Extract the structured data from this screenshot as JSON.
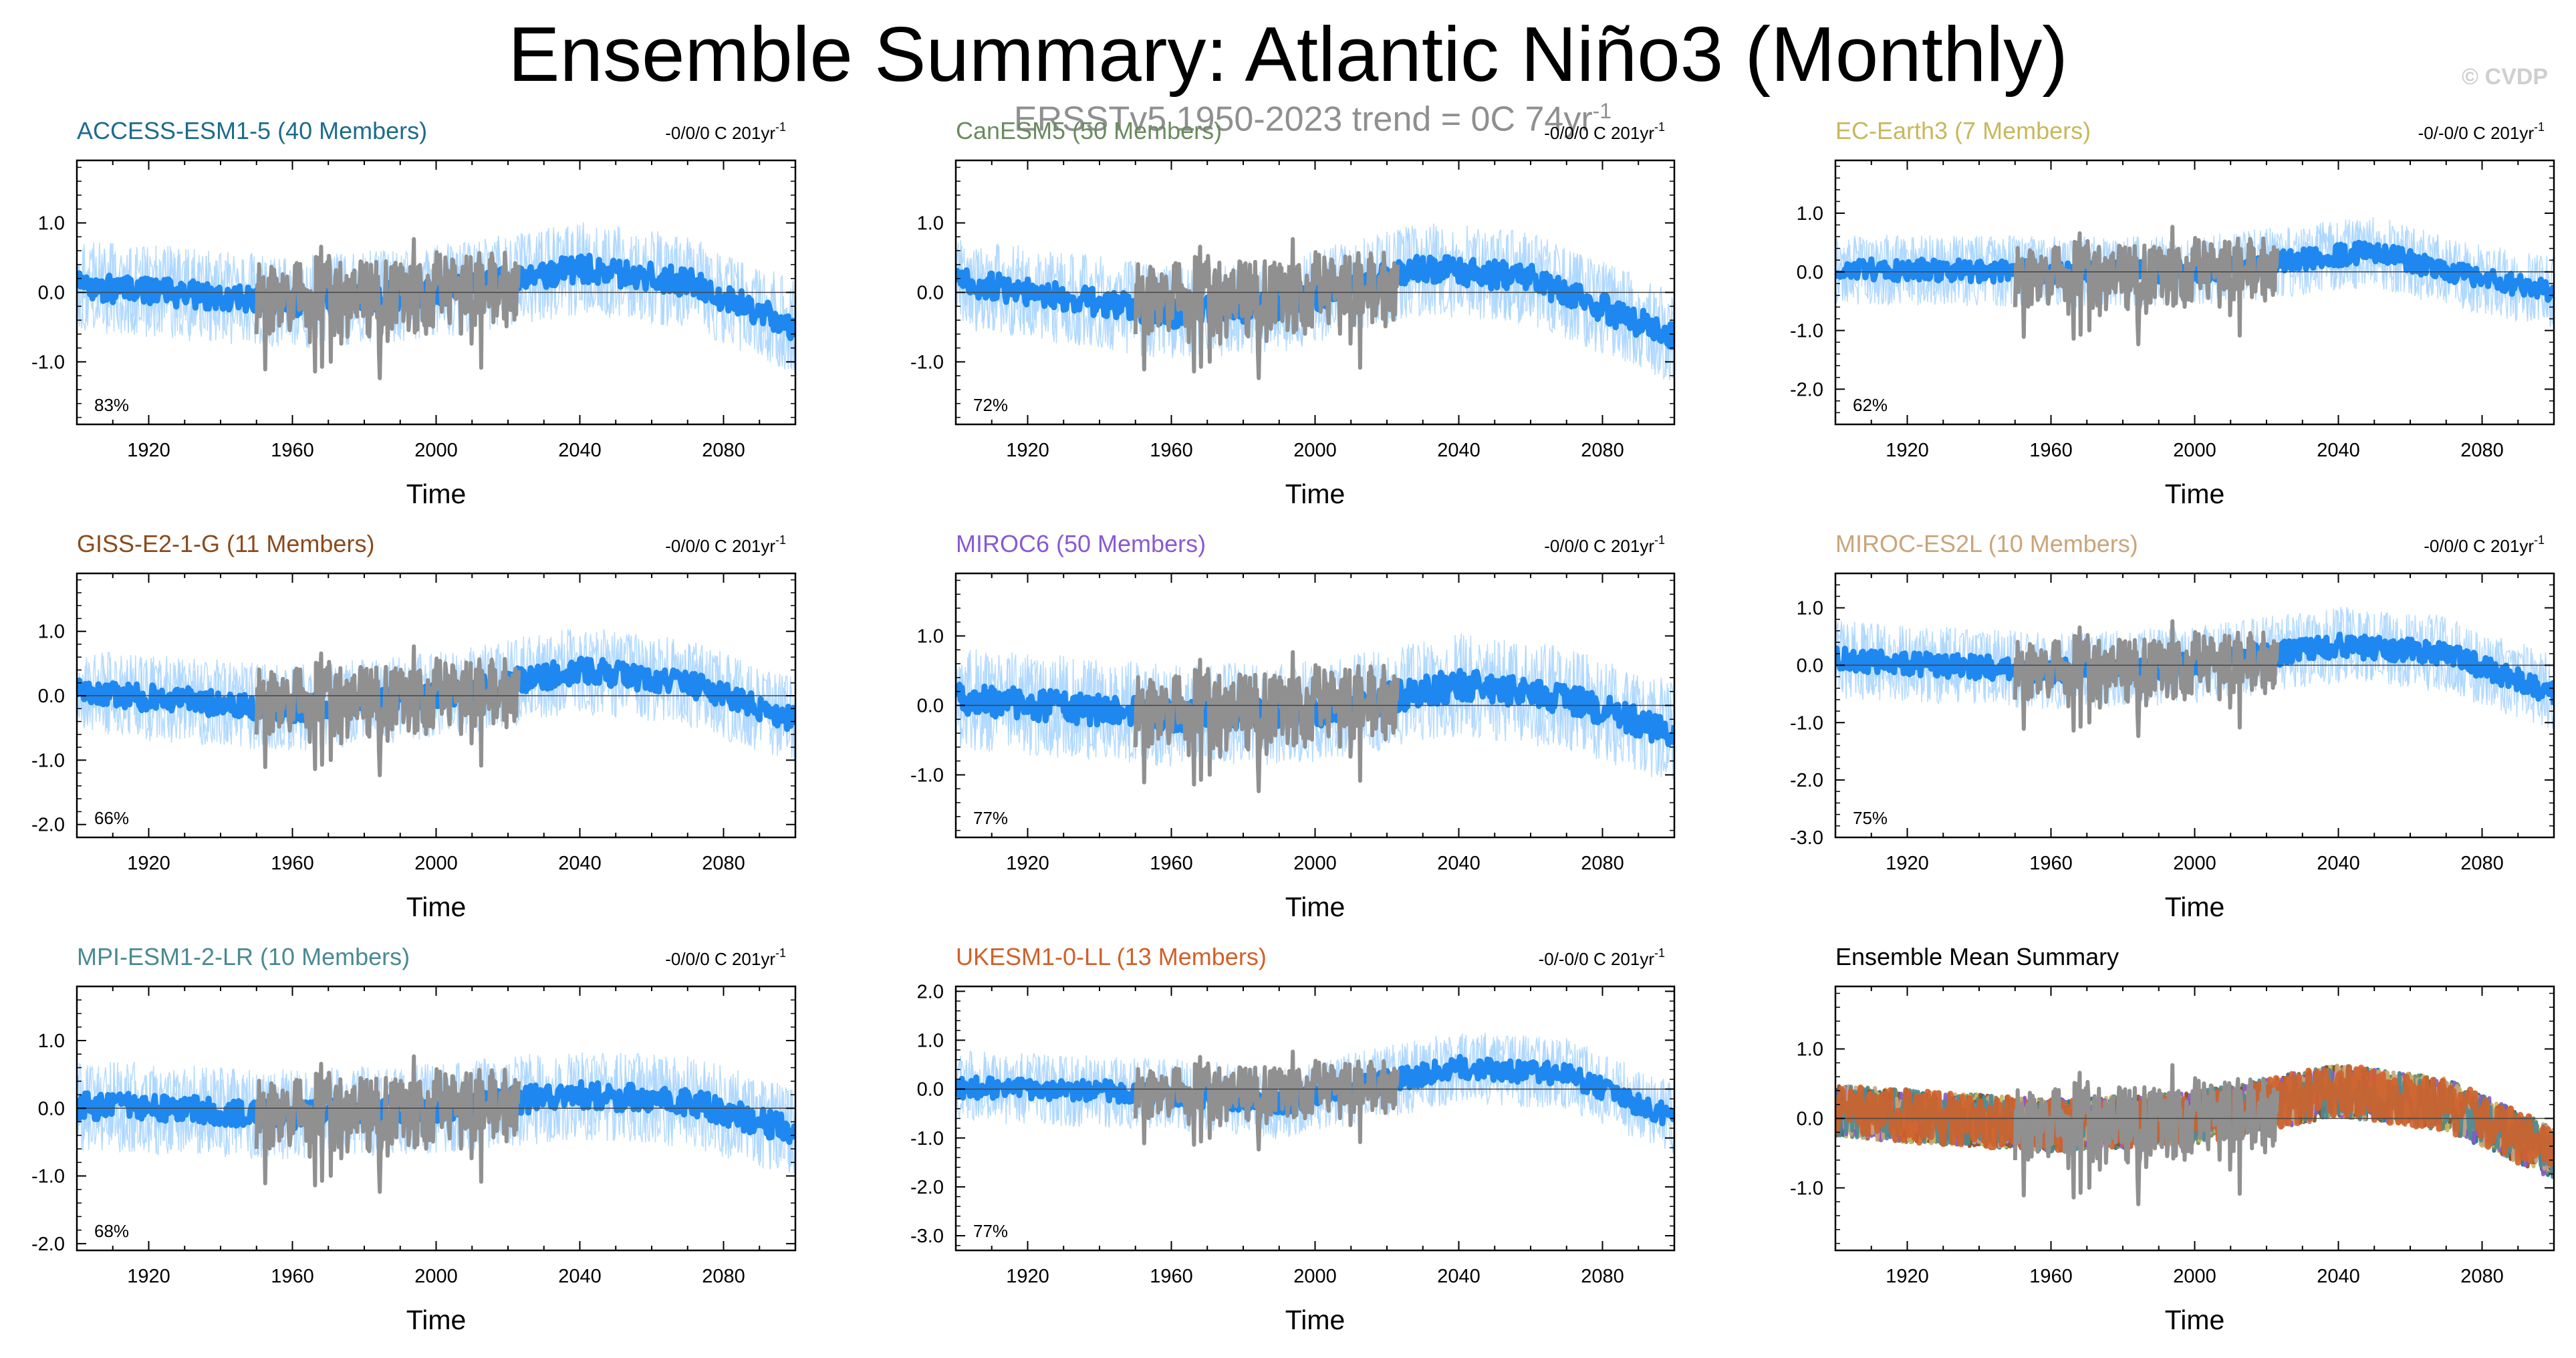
{
  "title": "Ensemble Summary: Atlantic Niño3 (Monthly)",
  "watermark": "© CVDP",
  "subtitle": {
    "text": "ERSSTv5 1950-2023 trend = 0C 74yr",
    "exponent": "-1"
  },
  "colors": {
    "ensemble_member": "#a8d4ff",
    "ensemble_mean": "#1e88f0",
    "observed": "#909090"
  },
  "chart_data": [
    {
      "type": "line",
      "title": "ACCESS-ESM1-5 (40 Members)",
      "title_color": "#1d6c8a",
      "trend_label": "-0/0/0 C 201yr",
      "trend_exponent": "-1",
      "percent": "83%",
      "xlabel": "Time",
      "xticks": [
        "1920",
        "1960",
        "2000",
        "2040",
        "2080"
      ],
      "xlim": [
        1900,
        2100
      ],
      "yticks": [
        "1.0",
        "0.0",
        "-1.0"
      ],
      "ytick_values": [
        1.0,
        0.0,
        -1.0
      ],
      "ylim": [
        -1.9,
        1.9
      ],
      "trend": [
        [
          1900,
          0.1
        ],
        [
          1960,
          -0.15
        ],
        [
          2000,
          0.0
        ],
        [
          2040,
          0.35
        ],
        [
          2070,
          0.15
        ],
        [
          2100,
          -0.5
        ]
      ],
      "spread": 0.5,
      "obs_span": [
        1950,
        2023
      ]
    },
    {
      "type": "line",
      "title": "CanESM5 (50 Members)",
      "title_color": "#6a8b5e",
      "trend_label": "-0/0/0 C 201yr",
      "trend_exponent": "-1",
      "percent": "72%",
      "xlabel": "Time",
      "xticks": [
        "1920",
        "1960",
        "2000",
        "2040",
        "2080"
      ],
      "xlim": [
        1900,
        2100
      ],
      "yticks": [
        "1.0",
        "0.0",
        "-1.0"
      ],
      "ytick_values": [
        1.0,
        0.0,
        -1.0
      ],
      "ylim": [
        -1.9,
        1.9
      ],
      "trend": [
        [
          1900,
          0.15
        ],
        [
          1960,
          -0.3
        ],
        [
          1990,
          -0.2
        ],
        [
          2030,
          0.35
        ],
        [
          2060,
          0.2
        ],
        [
          2100,
          -0.65
        ]
      ],
      "spread": 0.5,
      "obs_span": [
        1950,
        2023
      ]
    },
    {
      "type": "line",
      "title": "EC-Earth3 (7 Members)",
      "title_color": "#c8b85c",
      "trend_label": "-0/-0/0 C 201yr",
      "trend_exponent": "-1",
      "percent": "62%",
      "xlabel": "Time",
      "xticks": [
        "1920",
        "1960",
        "2000",
        "2040",
        "2080"
      ],
      "xlim": [
        1900,
        2100
      ],
      "yticks": [
        "1.0",
        "0.0",
        "-1.0",
        "-2.0"
      ],
      "ytick_values": [
        1.0,
        0.0,
        -1.0,
        -2.0
      ],
      "ylim": [
        -2.6,
        1.9
      ],
      "trend": [
        [
          1900,
          0.05
        ],
        [
          1960,
          0.0
        ],
        [
          2000,
          0.0
        ],
        [
          2050,
          0.35
        ],
        [
          2070,
          0.0
        ],
        [
          2100,
          -0.35
        ]
      ],
      "spread": 0.45,
      "obs_span": [
        1950,
        2023
      ]
    },
    {
      "type": "line",
      "title": "GISS-E2-1-G (11 Members)",
      "title_color": "#8b4a1c",
      "trend_label": "-0/0/0 C 201yr",
      "trend_exponent": "-1",
      "percent": "66%",
      "xlabel": "Time",
      "xticks": [
        "1920",
        "1960",
        "2000",
        "2040",
        "2080"
      ],
      "xlim": [
        1900,
        2100
      ],
      "yticks": [
        "1.0",
        "0.0",
        "-1.0",
        "-2.0"
      ],
      "ytick_values": [
        1.0,
        0.0,
        -1.0,
        -2.0
      ],
      "ylim": [
        -2.2,
        1.9
      ],
      "trend": [
        [
          1900,
          0.05
        ],
        [
          1960,
          -0.2
        ],
        [
          2000,
          0.0
        ],
        [
          2040,
          0.4
        ],
        [
          2070,
          0.2
        ],
        [
          2100,
          -0.4
        ]
      ],
      "spread": 0.5,
      "obs_span": [
        1950,
        2023
      ]
    },
    {
      "type": "line",
      "title": "MIROC6 (50 Members)",
      "title_color": "#8a5ad0",
      "trend_label": "-0/0/0 C 201yr",
      "trend_exponent": "-1",
      "percent": "77%",
      "xlabel": "Time",
      "xticks": [
        "1920",
        "1960",
        "2000",
        "2040",
        "2080"
      ],
      "xlim": [
        1900,
        2100
      ],
      "yticks": [
        "1.0",
        "0.0",
        "-1.0"
      ],
      "ytick_values": [
        1.0,
        0.0,
        -1.0
      ],
      "ylim": [
        -1.9,
        1.9
      ],
      "trend": [
        [
          1900,
          0.1
        ],
        [
          1960,
          -0.15
        ],
        [
          2000,
          -0.1
        ],
        [
          2040,
          0.3
        ],
        [
          2070,
          0.1
        ],
        [
          2100,
          -0.4
        ]
      ],
      "spread": 0.55,
      "obs_span": [
        1950,
        2023
      ]
    },
    {
      "type": "line",
      "title": "MIROC-ES2L (10 Members)",
      "title_color": "#c9a57a",
      "trend_label": "-0/0/0 C 201yr",
      "trend_exponent": "-1",
      "percent": "75%",
      "xlabel": "Time",
      "xticks": [
        "1920",
        "1960",
        "2000",
        "2040",
        "2080"
      ],
      "xlim": [
        1900,
        2100
      ],
      "yticks": [
        "1.0",
        "0.0",
        "-1.0",
        "-2.0",
        "-3.0"
      ],
      "ytick_values": [
        1.0,
        0.0,
        -1.0,
        -2.0,
        -3.0
      ],
      "ylim": [
        -3.0,
        1.6
      ],
      "trend": [
        [
          1900,
          0.1
        ],
        [
          1960,
          -0.1
        ],
        [
          2000,
          0.0
        ],
        [
          2040,
          0.35
        ],
        [
          2070,
          0.2
        ],
        [
          2100,
          -0.5
        ]
      ],
      "spread": 0.5,
      "obs_span": [
        1950,
        2023
      ]
    },
    {
      "type": "line",
      "title": "MPI-ESM1-2-LR (10 Members)",
      "title_color": "#4a8a92",
      "trend_label": "-0/0/0 C 201yr",
      "trend_exponent": "-1",
      "percent": "68%",
      "xlabel": "Time",
      "xticks": [
        "1920",
        "1960",
        "2000",
        "2040",
        "2080"
      ],
      "xlim": [
        1900,
        2100
      ],
      "yticks": [
        "1.0",
        "0.0",
        "-1.0",
        "-2.0"
      ],
      "ytick_values": [
        1.0,
        0.0,
        -1.0,
        -2.0
      ],
      "ylim": [
        -2.1,
        1.8
      ],
      "trend": [
        [
          1900,
          0.05
        ],
        [
          1960,
          -0.1
        ],
        [
          2000,
          0.0
        ],
        [
          2040,
          0.2
        ],
        [
          2070,
          0.1
        ],
        [
          2100,
          -0.35
        ]
      ],
      "spread": 0.5,
      "obs_span": [
        1950,
        2023
      ]
    },
    {
      "type": "line",
      "title": "UKESM1-0-LL (13 Members)",
      "title_color": "#d0602a",
      "trend_label": "-0/-0/0 C 201yr",
      "trend_exponent": "-1",
      "percent": "77%",
      "xlabel": "Time",
      "xticks": [
        "1920",
        "1960",
        "2000",
        "2040",
        "2080"
      ],
      "xlim": [
        1900,
        2100
      ],
      "yticks": [
        "2.0",
        "1.0",
        "0.0",
        "-1.0",
        "-2.0",
        "-3.0"
      ],
      "ytick_values": [
        2.0,
        1.0,
        0.0,
        -1.0,
        -2.0,
        -3.0
      ],
      "ylim": [
        -3.3,
        2.1
      ],
      "trend": [
        [
          1900,
          0.05
        ],
        [
          1960,
          -0.1
        ],
        [
          1990,
          -0.3
        ],
        [
          2040,
          0.45
        ],
        [
          2070,
          0.3
        ],
        [
          2100,
          -0.6
        ]
      ],
      "spread": 0.55,
      "obs_span": [
        1950,
        2023
      ]
    },
    {
      "type": "line",
      "title": "Ensemble Mean Summary",
      "title_color": "#000000",
      "trend_label": "",
      "trend_exponent": "",
      "percent": "",
      "xlabel": "Time",
      "xticks": [
        "1920",
        "1960",
        "2000",
        "2040",
        "2080"
      ],
      "xlim": [
        1900,
        2100
      ],
      "yticks": [
        "1.0",
        "0.0",
        "-1.0"
      ],
      "ytick_values": [
        1.0,
        0.0,
        -1.0
      ],
      "ylim": [
        -1.9,
        1.9
      ],
      "summary": true,
      "series": [
        {
          "name": "ACCESS-ESM1-5",
          "color": "#1d6c8a"
        },
        {
          "name": "CanESM5",
          "color": "#6a8b5e"
        },
        {
          "name": "EC-Earth3",
          "color": "#c8b85c"
        },
        {
          "name": "GISS-E2-1-G",
          "color": "#8b4a1c"
        },
        {
          "name": "MIROC6",
          "color": "#8a5ad0"
        },
        {
          "name": "MIROC-ES2L",
          "color": "#c9a57a"
        },
        {
          "name": "MPI-ESM1-2-LR",
          "color": "#4a8a92"
        },
        {
          "name": "UKESM1-0-LL",
          "color": "#d0602a"
        }
      ],
      "trend": [
        [
          1900,
          0.1
        ],
        [
          1960,
          -0.1
        ],
        [
          2000,
          0.0
        ],
        [
          2040,
          0.4
        ],
        [
          2070,
          0.2
        ],
        [
          2100,
          -0.5
        ]
      ],
      "obs_span": [
        1950,
        2023
      ]
    }
  ]
}
